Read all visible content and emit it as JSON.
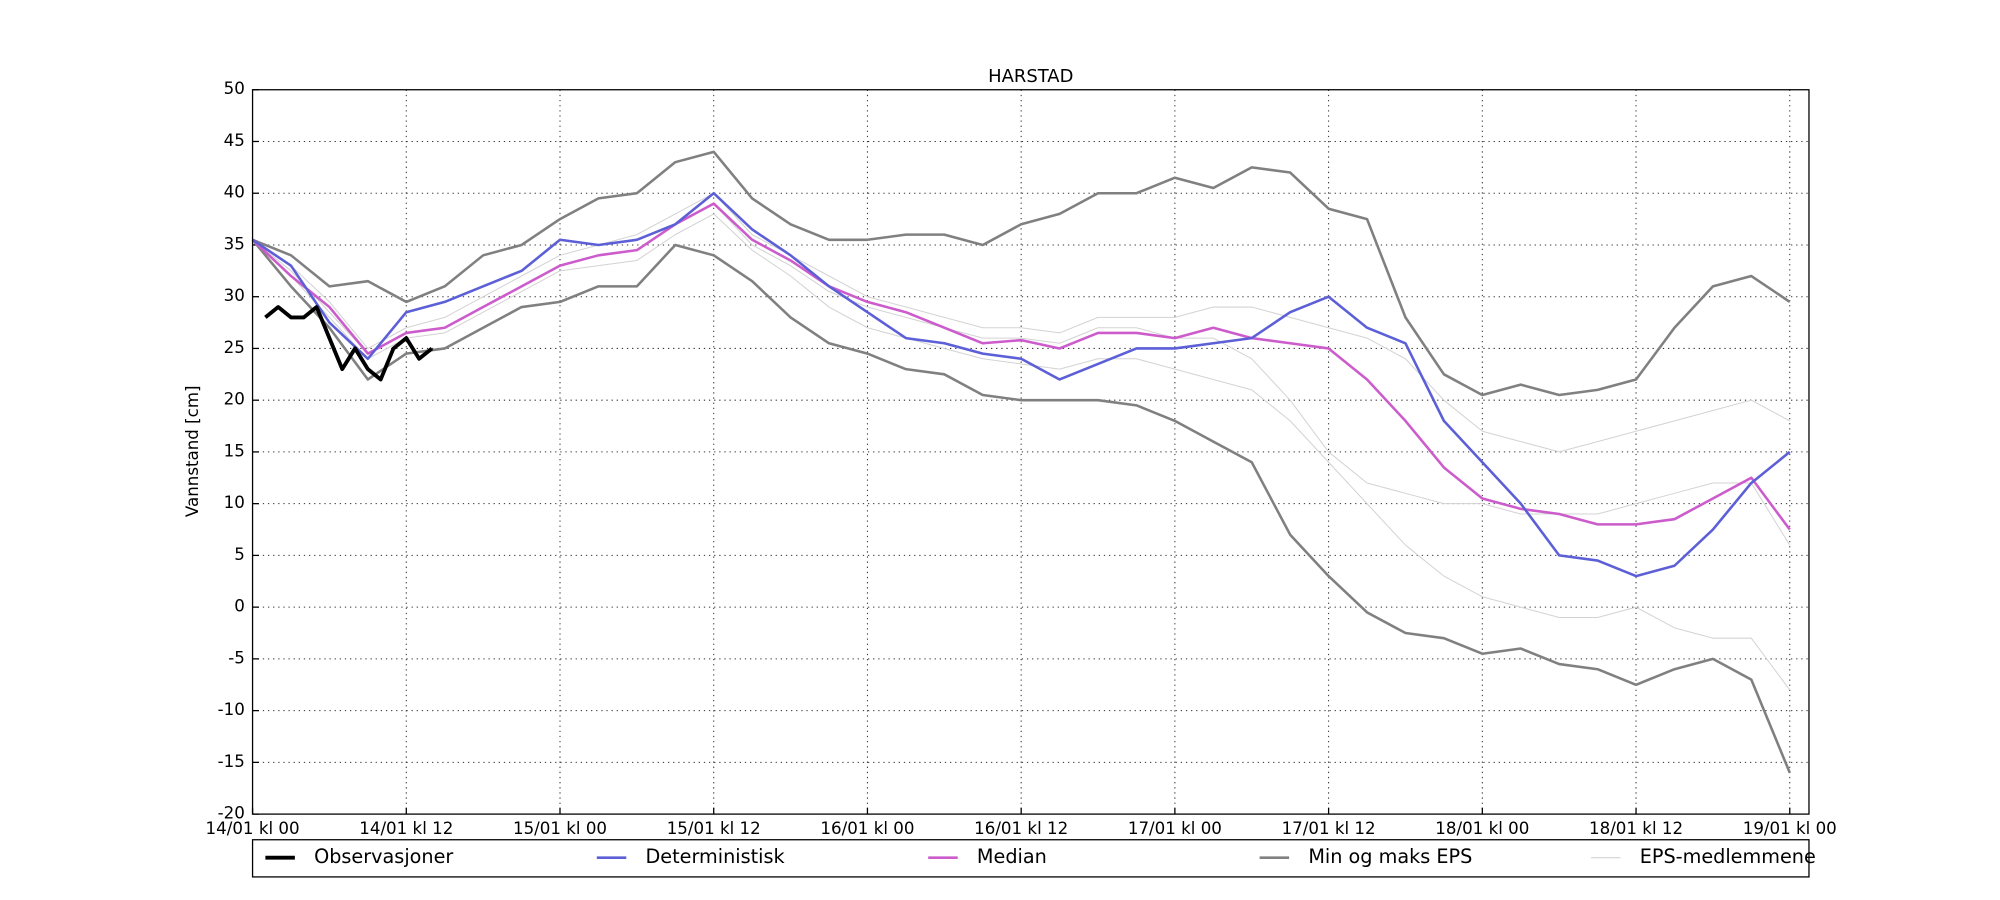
{
  "chart_data": {
    "type": "line",
    "title": "HARSTAD",
    "y_label": "Vannstand [cm]",
    "x": [
      0,
      3,
      6,
      9,
      12,
      15,
      18,
      21,
      24,
      27,
      30,
      33,
      36,
      39,
      42,
      45,
      48,
      51,
      54,
      57,
      60,
      63,
      66,
      69,
      72,
      75,
      78,
      81,
      84,
      87,
      90,
      93,
      96,
      99,
      102,
      105,
      108,
      111,
      114,
      117,
      120
    ],
    "xlim": [
      0,
      121.5
    ],
    "xticks": [
      {
        "value": 0,
        "label": "14/01 kl 00"
      },
      {
        "value": 12,
        "label": "14/01 kl 12"
      },
      {
        "value": 24,
        "label": "15/01 kl 00"
      },
      {
        "value": 36,
        "label": "15/01 kl 12"
      },
      {
        "value": 48,
        "label": "16/01 kl 00"
      },
      {
        "value": 60,
        "label": "16/01 kl 12"
      },
      {
        "value": 72,
        "label": "17/01 kl 00"
      },
      {
        "value": 84,
        "label": "17/01 kl 12"
      },
      {
        "value": 96,
        "label": "18/01 kl 00"
      },
      {
        "value": 108,
        "label": "18/01 kl 12"
      },
      {
        "value": 120,
        "label": "19/01 kl 00"
      }
    ],
    "ylim": [
      -20,
      50
    ],
    "yticks": [
      -20,
      -15,
      -10,
      -5,
      0,
      5,
      10,
      15,
      20,
      25,
      30,
      35,
      40,
      45,
      50
    ],
    "grid": true,
    "legend": "bottom",
    "series": [
      {
        "name": "Observasjoner",
        "color": "#000000",
        "x": [
          1,
          2,
          3,
          4,
          5,
          6,
          7,
          8,
          9,
          10,
          11,
          12,
          13,
          14
        ],
        "values": [
          28,
          29,
          28,
          28,
          29,
          26,
          23,
          25,
          23,
          22,
          25,
          26,
          24,
          25
        ]
      },
      {
        "name": "Deterministisk",
        "color": "#5c5fd6",
        "values": [
          35.5,
          33,
          27.5,
          24,
          28.5,
          29.5,
          31,
          32.5,
          35.5,
          35,
          35.5,
          37,
          40,
          36.5,
          34,
          31,
          28.5,
          26,
          25.5,
          24.5,
          24,
          22,
          23.5,
          25,
          25,
          25.5,
          26,
          28.5,
          30,
          27,
          25.5,
          18,
          14,
          10,
          5,
          4.5,
          3,
          4,
          7.5,
          12,
          15
        ]
      },
      {
        "name": "Median",
        "color": "#cc5ccc",
        "values": [
          35.5,
          32,
          29,
          24.5,
          26.5,
          27,
          29,
          31,
          33,
          34,
          34.5,
          37,
          39,
          35.5,
          33.5,
          31,
          29.5,
          28.5,
          27,
          25.5,
          25.8,
          25,
          26.5,
          26.5,
          26,
          27,
          26,
          25.5,
          25,
          22,
          18,
          13.5,
          10.5,
          9.5,
          9,
          8,
          8,
          8.5,
          10.5,
          12.5,
          7.5
        ]
      },
      {
        "name": "Min og maks EPS",
        "color": "#808080",
        "max": [
          35.5,
          34,
          31,
          31.5,
          29.5,
          31,
          34,
          35,
          37.5,
          39.5,
          40,
          43,
          44,
          39.5,
          37,
          35.5,
          35.5,
          36,
          36,
          35,
          37,
          38,
          40,
          40,
          41.5,
          40.5,
          42.5,
          42,
          38.5,
          37.5,
          28,
          22.5,
          20.5,
          21.5,
          20.5,
          21,
          22,
          27,
          31,
          32,
          29.5
        ],
        "min": [
          35.5,
          31,
          27,
          22,
          24.5,
          25,
          27,
          29,
          29.5,
          31,
          31,
          35,
          34,
          31.5,
          28,
          25.5,
          24.5,
          23,
          22.5,
          20.5,
          20,
          20,
          20,
          19.5,
          18,
          16,
          14,
          7,
          3,
          -0.5,
          -2.5,
          -3,
          -4.5,
          -4,
          -5.5,
          -6,
          -7.5,
          -6,
          -5,
          -7,
          -16
        ]
      },
      {
        "name": "EPS-medlemmene",
        "color": "#d3d3d3",
        "members": [
          [
            35.5,
            33,
            29.5,
            25,
            27,
            28,
            30,
            32,
            34,
            35,
            36,
            38,
            40,
            36,
            34,
            32,
            30,
            29,
            28,
            27,
            27,
            26.5,
            28,
            28,
            28,
            29,
            29,
            28,
            27,
            26,
            24,
            20,
            17,
            16,
            15,
            16,
            17,
            18,
            19,
            20,
            18
          ],
          [
            35.5,
            32,
            28,
            24,
            26,
            26.5,
            28.5,
            30.5,
            32.5,
            33,
            33.5,
            36,
            38,
            34.5,
            32,
            29,
            27,
            26,
            25,
            24,
            23.5,
            23,
            24,
            24,
            23,
            22,
            21,
            18,
            14,
            10,
            6,
            3,
            1,
            0,
            -1,
            -1,
            0,
            -2,
            -3,
            -3,
            -8
          ],
          [
            35.5,
            32.5,
            28.5,
            24.5,
            26.5,
            27,
            29,
            31,
            33,
            34,
            34.5,
            37,
            39,
            35,
            33,
            30.5,
            29,
            28,
            27,
            26,
            26,
            25.5,
            27,
            27,
            26,
            26,
            24,
            20,
            15,
            12,
            11,
            10,
            10,
            9,
            9,
            9,
            10,
            11,
            12,
            12,
            6
          ]
        ]
      }
    ]
  }
}
